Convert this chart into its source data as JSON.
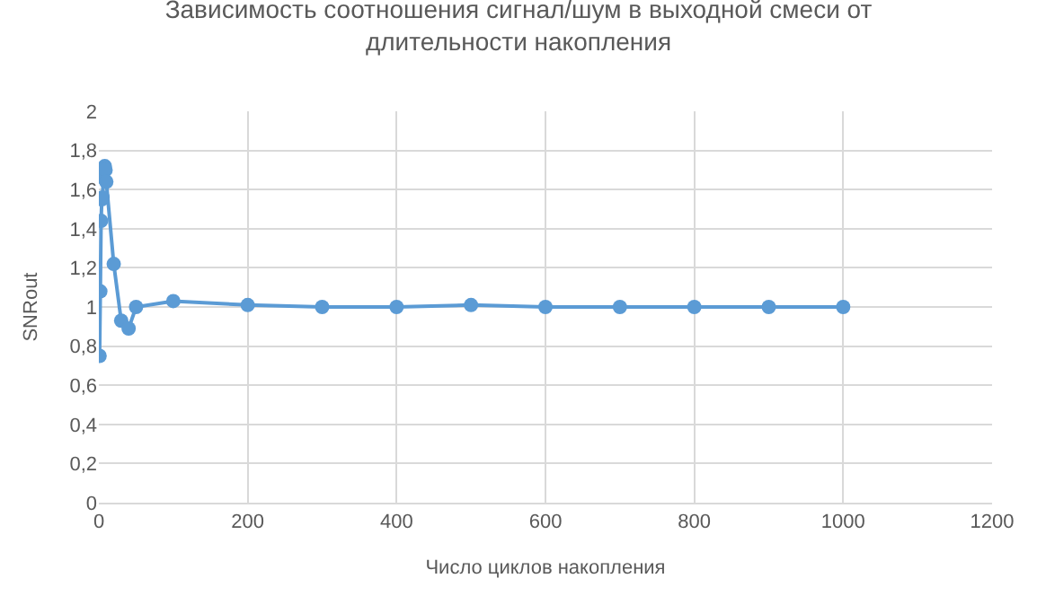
{
  "chart_data": {
    "type": "line",
    "title": "Зависимость соотношения сигнал/шум в выходной смеси от\nдлительности накопления",
    "xlabel": "Число циклов накопления",
    "ylabel": "SNRout",
    "x": [
      1,
      2,
      3,
      4,
      5,
      6,
      7,
      8,
      9,
      10,
      20,
      30,
      40,
      50,
      100,
      200,
      300,
      400,
      500,
      600,
      700,
      800,
      900,
      1000
    ],
    "series": [
      {
        "color": "#5b9bd5",
        "values": [
          0.75,
          1.08,
          1.44,
          1.55,
          1.56,
          1.66,
          1.71,
          1.72,
          1.7,
          1.64,
          1.22,
          0.93,
          0.89,
          1.0,
          1.03,
          1.01,
          1.0,
          1.0,
          1.01,
          1.0,
          1.0,
          1.0,
          1.0,
          1.0
        ]
      }
    ],
    "xlim": [
      0,
      1200
    ],
    "xticks": [
      0,
      200,
      400,
      600,
      800,
      1000,
      1200
    ],
    "ylim": [
      0,
      2
    ],
    "yticks": [
      0,
      {
        "value": 0.2,
        "label": "0,2"
      },
      {
        "value": 0.4,
        "label": "0,4"
      },
      {
        "value": 0.6,
        "label": "0,6"
      },
      {
        "value": 0.8,
        "label": "0,8"
      },
      1,
      {
        "value": 1.2,
        "label": "1,2"
      },
      {
        "value": 1.4,
        "label": "1,4"
      },
      {
        "value": 1.6,
        "label": "1,6"
      },
      {
        "value": 1.8,
        "label": "1,8"
      },
      2
    ],
    "grid": true,
    "legend": false,
    "marker": "circle",
    "line_style": "solid"
  }
}
